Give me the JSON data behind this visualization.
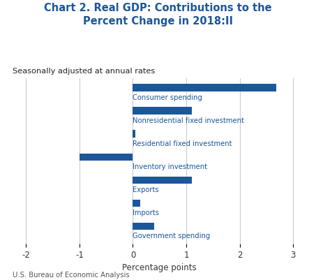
{
  "title": "Chart 2. Real GDP: Contributions to the\nPercent Change in 2018:II",
  "subtitle": "Seasonally adjusted at annual rates",
  "xlabel": "Percentage points",
  "footnote": "U.S. Bureau of Economic Analysis",
  "categories": [
    "Government spending",
    "Imports",
    "Exports",
    "Inventory investment",
    "Residential fixed investment",
    "Nonresidential fixed investment",
    "Consumer spending"
  ],
  "values": [
    0.4,
    0.14,
    1.1,
    -1.0,
    0.05,
    1.1,
    2.68
  ],
  "bar_color": "#1b5799",
  "label_color": "#1b5799",
  "title_color": "#1b5799",
  "subtitle_color": "#222222",
  "footnote_color": "#555555",
  "background_color": "#ffffff",
  "xlim": [
    -2.25,
    3.25
  ],
  "xticks": [
    -2,
    -1,
    0,
    1,
    2,
    3
  ],
  "grid_color": "#cccccc",
  "bar_height": 0.45
}
